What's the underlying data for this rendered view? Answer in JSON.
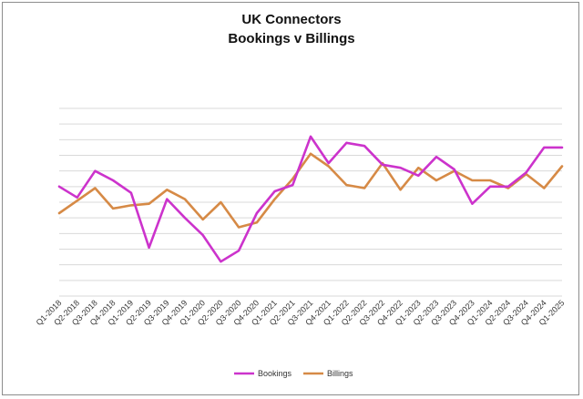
{
  "chart_data": {
    "type": "line",
    "title": "UK Connectors",
    "subtitle": "Bookings v Billings",
    "xlabel": "",
    "ylabel": "",
    "grid": true,
    "y_axis_labels": false,
    "legend_position": "bottom",
    "categories": [
      "Q1-2018",
      "Q2-2018",
      "Q3-2018",
      "Q4-2018",
      "Q1-2019",
      "Q2-2019",
      "Q3-2019",
      "Q4-2019",
      "Q1-2020",
      "Q2-2020",
      "Q3-2020",
      "Q4-2020",
      "Q1-2021",
      "Q2-2021",
      "Q3-2021",
      "Q4-2021",
      "Q1-2022",
      "Q2-2022",
      "Q3-2022",
      "Q4-2022",
      "Q1-2023",
      "Q2-2023",
      "Q3-2023",
      "Q4-2023",
      "Q1-2024",
      "Q2-2024",
      "Q3-2024",
      "Q4-2024",
      "Q1-2025"
    ],
    "ylim": [
      0,
      12
    ],
    "series": [
      {
        "name": "Bookings",
        "color": "#cc33cc",
        "values": [
          7.0,
          6.3,
          8.0,
          7.4,
          6.6,
          3.1,
          6.2,
          5.0,
          3.9,
          2.2,
          2.9,
          5.3,
          6.7,
          7.1,
          10.2,
          8.5,
          9.8,
          9.6,
          8.4,
          8.2,
          7.7,
          8.9,
          8.1,
          5.9,
          7.0,
          7.0,
          7.9,
          9.5,
          9.5
        ]
      },
      {
        "name": "Billings",
        "color": "#d68a46",
        "values": [
          5.3,
          6.1,
          6.9,
          5.6,
          5.8,
          5.9,
          6.8,
          6.2,
          4.9,
          6.0,
          4.4,
          4.7,
          6.2,
          7.5,
          9.1,
          8.3,
          7.1,
          6.9,
          8.5,
          6.8,
          8.2,
          7.4,
          8.0,
          7.4,
          7.4,
          6.9,
          7.8,
          6.9,
          8.3
        ]
      }
    ]
  }
}
